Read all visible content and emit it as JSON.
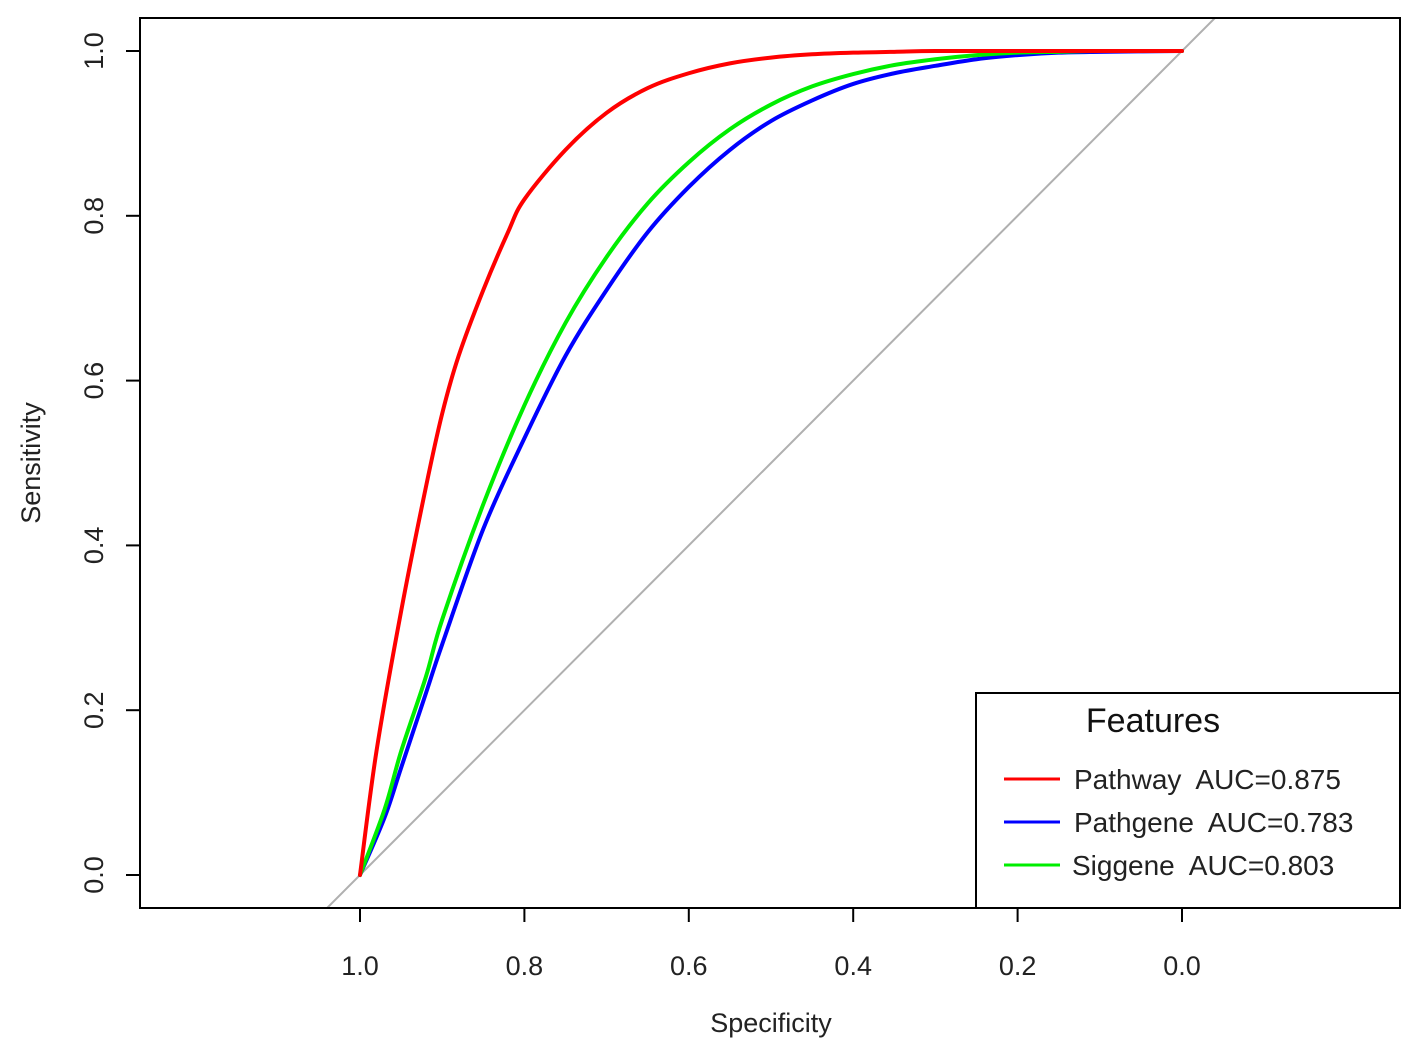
{
  "chart_data": {
    "type": "line",
    "xlabel": "Specificity",
    "ylabel": "Sensitivity",
    "x_reversed": true,
    "xlim": [
      1.0,
      0.0
    ],
    "ylim": [
      0.0,
      1.0
    ],
    "x_ticks": [
      "1.0",
      "0.8",
      "0.6",
      "0.4",
      "0.2",
      "0.0"
    ],
    "y_ticks": [
      "0.0",
      "0.2",
      "0.4",
      "0.6",
      "0.8",
      "1.0"
    ],
    "grid": false,
    "legend_title": "Features",
    "legend_position": "bottom-right",
    "diagonal_color": "#b0b0b0",
    "series": [
      {
        "name": "Pathway  AUC=0.875",
        "color": "#ff0000",
        "x": [
          1.0,
          0.98,
          0.95,
          0.92,
          0.9,
          0.88,
          0.85,
          0.82,
          0.8,
          0.75,
          0.7,
          0.65,
          0.6,
          0.55,
          0.5,
          0.45,
          0.4,
          0.35,
          0.3,
          0.2,
          0.1,
          0.0
        ],
        "y": [
          0.0,
          0.15,
          0.32,
          0.47,
          0.56,
          0.63,
          0.71,
          0.78,
          0.82,
          0.88,
          0.925,
          0.955,
          0.973,
          0.985,
          0.992,
          0.996,
          0.998,
          0.999,
          1.0,
          1.0,
          1.0,
          1.0
        ]
      },
      {
        "name": "Pathgene  AUC=0.783",
        "color": "#0000ff",
        "x": [
          1.0,
          0.97,
          0.95,
          0.92,
          0.9,
          0.85,
          0.8,
          0.75,
          0.7,
          0.65,
          0.6,
          0.55,
          0.5,
          0.45,
          0.4,
          0.35,
          0.3,
          0.25,
          0.2,
          0.15,
          0.1,
          0.0
        ],
        "y": [
          0.0,
          0.07,
          0.13,
          0.22,
          0.28,
          0.42,
          0.53,
          0.63,
          0.71,
          0.78,
          0.835,
          0.88,
          0.915,
          0.94,
          0.96,
          0.973,
          0.982,
          0.99,
          0.995,
          0.998,
          0.999,
          1.0
        ]
      },
      {
        "name": "Siggene  AUC=0.803",
        "color": "#00ee00",
        "x": [
          1.0,
          0.97,
          0.95,
          0.92,
          0.9,
          0.85,
          0.8,
          0.75,
          0.7,
          0.65,
          0.6,
          0.55,
          0.5,
          0.45,
          0.4,
          0.35,
          0.3,
          0.25,
          0.2,
          0.15,
          0.1,
          0.0
        ],
        "y": [
          0.0,
          0.08,
          0.15,
          0.24,
          0.31,
          0.45,
          0.57,
          0.67,
          0.75,
          0.815,
          0.865,
          0.905,
          0.935,
          0.957,
          0.972,
          0.983,
          0.99,
          0.995,
          0.998,
          0.999,
          1.0,
          1.0
        ]
      }
    ]
  }
}
